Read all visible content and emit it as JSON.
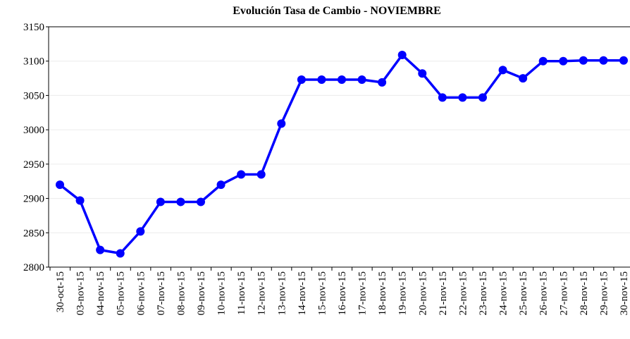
{
  "chart_data": {
    "type": "line",
    "title": "Evolución Tasa de Cambio - NOVIEMBRE",
    "categories": [
      "30-oct-15",
      "03-nov-15",
      "04-nov-15",
      "05-nov-15",
      "06-nov-15",
      "07-nov-15",
      "08-nov-15",
      "09-nov-15",
      "10-nov-15",
      "11-nov-15",
      "12-nov-15",
      "13-nov-15",
      "14-nov-15",
      "15-nov-15",
      "16-nov-15",
      "17-nov-15",
      "18-nov-15",
      "19-nov-15",
      "20-nov-15",
      "21-nov-15",
      "22-nov-15",
      "23-nov-15",
      "24-nov-15",
      "25-nov-15",
      "26-nov-15",
      "27-nov-15",
      "28-nov-15",
      "29-nov-15",
      "30-nov-15"
    ],
    "values": [
      2920,
      2897,
      2825,
      2820,
      2852,
      2895,
      2895,
      2895,
      2920,
      2935,
      2935,
      3009,
      3073,
      3073,
      3073,
      3073,
      3069,
      3109,
      3082,
      3047,
      3047,
      3047,
      3087,
      3075,
      3100,
      3100,
      3101,
      3101,
      3101
    ],
    "color": "#0000ff",
    "ylim": [
      2800,
      3150
    ],
    "yticks": [
      2800,
      2850,
      2900,
      2950,
      3000,
      3050,
      3100,
      3150
    ],
    "grid": true
  }
}
